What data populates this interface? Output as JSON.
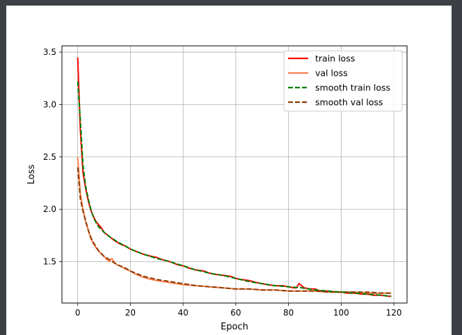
{
  "chart_data": {
    "type": "line",
    "xlabel": "Epoch",
    "ylabel": "Loss",
    "xlim": [
      -6,
      125
    ],
    "ylim": [
      1.105,
      3.56
    ],
    "xticks": [
      0,
      20,
      40,
      60,
      80,
      100,
      120
    ],
    "yticks": [
      1.5,
      2.0,
      2.5,
      3.0,
      3.5
    ],
    "xtick_labels": [
      "0",
      "20",
      "40",
      "60",
      "80",
      "100",
      "120"
    ],
    "ytick_labels": [
      "1.5",
      "2.0",
      "2.5",
      "3.0",
      "3.5"
    ],
    "grid": true,
    "legend_position": "top-right",
    "colors": {
      "train": "#ff0000",
      "val": "#ff7f50",
      "smooth_train": "#008000",
      "smooth_val": "#8b3a00",
      "grid": "#b0b0b0"
    },
    "series": [
      {
        "name": "train loss",
        "style": "solid",
        "x": [
          0,
          1,
          2,
          3,
          4,
          5,
          6,
          7,
          8,
          9,
          10,
          12,
          14,
          16,
          18,
          20,
          22,
          25,
          28,
          30,
          32,
          35,
          38,
          40,
          42,
          45,
          48,
          50,
          52,
          55,
          58,
          60,
          62,
          65,
          68,
          70,
          72,
          75,
          78,
          80,
          82,
          83,
          84,
          85,
          86,
          88,
          90,
          92,
          95,
          98,
          100,
          102,
          105,
          108,
          110,
          112,
          115,
          118,
          119
        ],
        "y": [
          3.45,
          2.75,
          2.35,
          2.2,
          2.08,
          1.99,
          1.93,
          1.88,
          1.85,
          1.82,
          1.78,
          1.74,
          1.7,
          1.67,
          1.65,
          1.62,
          1.6,
          1.57,
          1.55,
          1.54,
          1.52,
          1.5,
          1.47,
          1.46,
          1.44,
          1.42,
          1.41,
          1.39,
          1.38,
          1.37,
          1.36,
          1.34,
          1.33,
          1.32,
          1.3,
          1.29,
          1.28,
          1.27,
          1.27,
          1.26,
          1.25,
          1.25,
          1.29,
          1.27,
          1.25,
          1.24,
          1.24,
          1.22,
          1.22,
          1.21,
          1.21,
          1.2,
          1.2,
          1.19,
          1.19,
          1.18,
          1.18,
          1.17,
          1.17
        ]
      },
      {
        "name": "val loss",
        "style": "solid",
        "x": [
          0,
          1,
          2,
          3,
          4,
          5,
          6,
          7,
          8,
          9,
          10,
          11,
          12,
          13,
          14,
          15,
          16,
          18,
          20,
          22,
          25,
          28,
          30,
          35,
          40,
          45,
          50,
          55,
          60,
          65,
          70,
          75,
          80,
          85,
          90,
          95,
          100,
          105,
          110,
          115,
          119
        ],
        "y": [
          2.5,
          2.15,
          2.0,
          1.88,
          1.8,
          1.72,
          1.67,
          1.63,
          1.6,
          1.57,
          1.55,
          1.52,
          1.5,
          1.53,
          1.49,
          1.47,
          1.46,
          1.43,
          1.41,
          1.38,
          1.35,
          1.33,
          1.32,
          1.3,
          1.28,
          1.27,
          1.26,
          1.25,
          1.24,
          1.24,
          1.23,
          1.23,
          1.22,
          1.22,
          1.22,
          1.21,
          1.21,
          1.21,
          1.2,
          1.2,
          1.2
        ]
      },
      {
        "name": "smooth train loss",
        "style": "dashed",
        "x": [
          0,
          1,
          2,
          3,
          4,
          5,
          6,
          7,
          8,
          10,
          12,
          15,
          18,
          20,
          25,
          30,
          35,
          40,
          45,
          50,
          55,
          60,
          65,
          70,
          75,
          80,
          85,
          90,
          95,
          100,
          105,
          110,
          115,
          119
        ],
        "y": [
          3.22,
          2.85,
          2.42,
          2.22,
          2.1,
          2.0,
          1.92,
          1.87,
          1.83,
          1.78,
          1.74,
          1.69,
          1.65,
          1.62,
          1.57,
          1.53,
          1.5,
          1.46,
          1.42,
          1.39,
          1.37,
          1.34,
          1.31,
          1.29,
          1.27,
          1.26,
          1.25,
          1.23,
          1.22,
          1.21,
          1.2,
          1.19,
          1.18,
          1.17
        ]
      },
      {
        "name": "smooth val loss",
        "style": "dashed",
        "x": [
          0,
          1,
          2,
          3,
          4,
          5,
          6,
          7,
          8,
          10,
          12,
          15,
          18,
          20,
          25,
          30,
          35,
          40,
          45,
          50,
          55,
          60,
          65,
          70,
          75,
          80,
          85,
          90,
          95,
          100,
          105,
          110,
          115,
          119
        ],
        "y": [
          2.4,
          2.1,
          1.98,
          1.89,
          1.8,
          1.73,
          1.68,
          1.64,
          1.6,
          1.55,
          1.52,
          1.47,
          1.44,
          1.41,
          1.36,
          1.33,
          1.31,
          1.29,
          1.27,
          1.26,
          1.25,
          1.24,
          1.24,
          1.23,
          1.23,
          1.22,
          1.22,
          1.22,
          1.21,
          1.21,
          1.21,
          1.21,
          1.2,
          1.2
        ]
      }
    ]
  }
}
